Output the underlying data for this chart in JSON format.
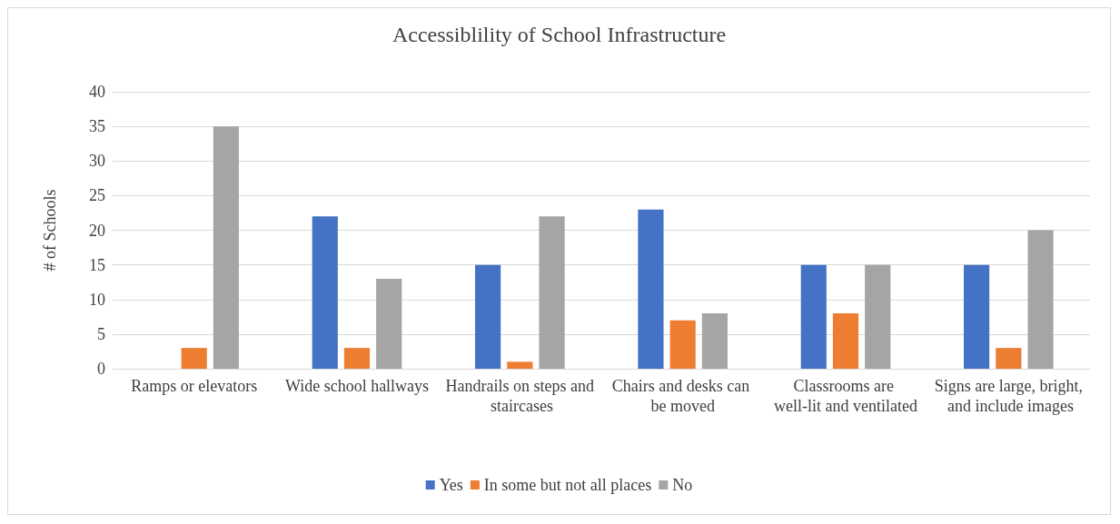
{
  "chart_data": {
    "type": "bar",
    "title": "Accessiblility of School Infrastructure",
    "ylabel": "# of Schools",
    "categories": [
      "Ramps or elevators",
      "Wide school hallways",
      "Handrails on steps and staircases",
      "Chairs and desks can be moved",
      "Classrooms are well-lit and ventilated",
      "Signs are large, bright, and include images"
    ],
    "series": [
      {
        "name": "Yes",
        "color": "#4472c4",
        "values": [
          0,
          22,
          15,
          23,
          15,
          15
        ]
      },
      {
        "name": "In some but not all places",
        "color": "#ed7d31",
        "values": [
          3,
          3,
          1,
          7,
          8,
          3
        ]
      },
      {
        "name": "No",
        "color": "#a5a5a5",
        "values": [
          35,
          13,
          22,
          8,
          15,
          20
        ]
      }
    ],
    "ylim": [
      0,
      40
    ],
    "yticks": [
      0,
      5,
      10,
      15,
      20,
      25,
      30,
      35,
      40
    ],
    "grid": "y",
    "legend": "bottom"
  }
}
